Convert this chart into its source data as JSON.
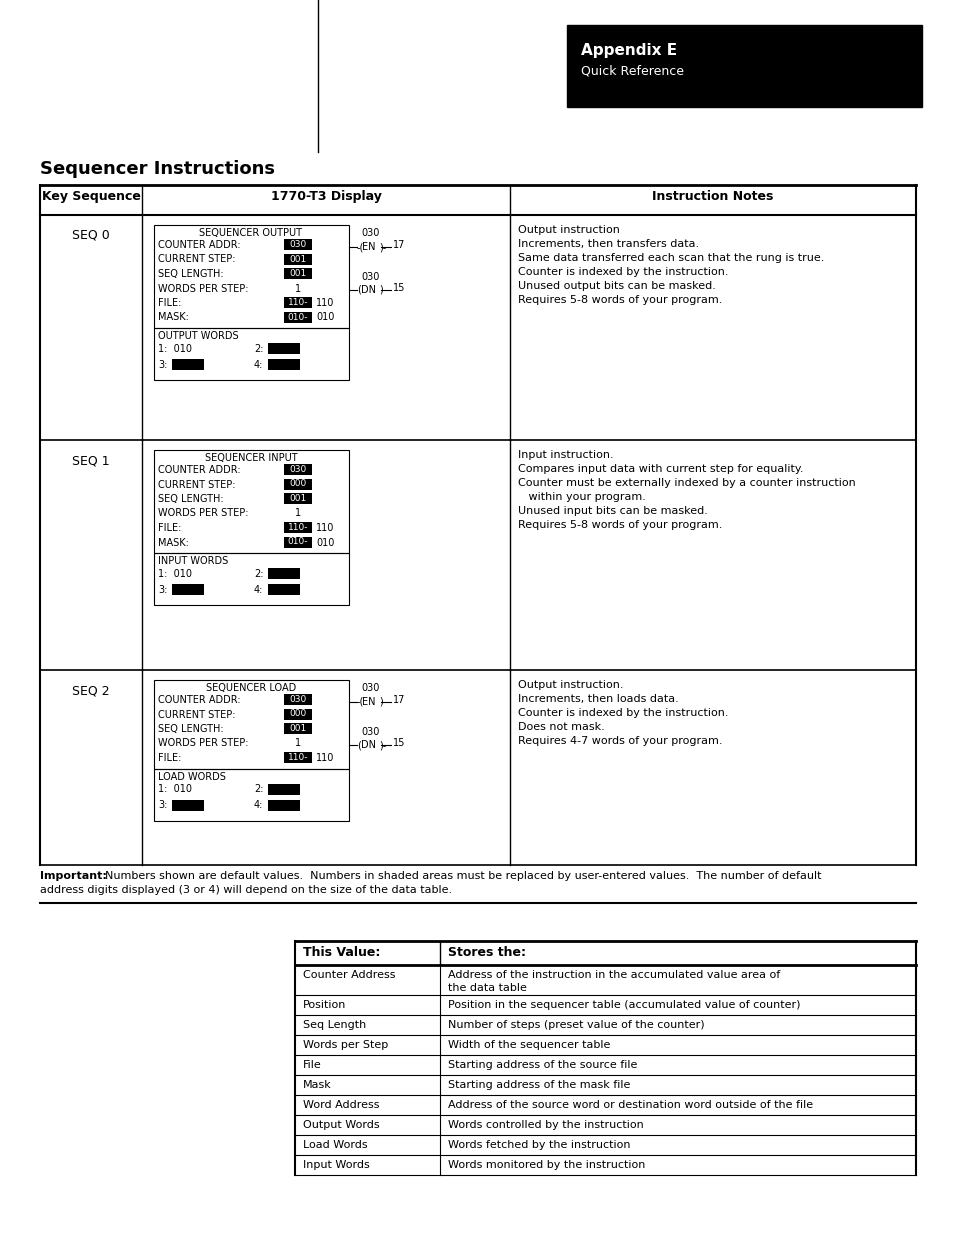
{
  "title": "Sequencer Instructions",
  "appendix_title": "Appendix E",
  "appendix_subtitle": "Quick Reference",
  "header_row": [
    "Key Sequence",
    "1770-T3 Display",
    "Instruction Notes"
  ],
  "seq_rows": [
    {
      "key": "SEQ 0",
      "display_title": "SEQUENCER OUTPUT",
      "fields": [
        [
          "COUNTER ADDR:",
          "030",
          true,
          null
        ],
        [
          "CURRENT STEP:",
          "001",
          true,
          null
        ],
        [
          "SEQ LENGTH:",
          "001",
          true,
          null
        ],
        [
          "WORDS PER STEP:",
          "1",
          false,
          null
        ],
        [
          "FILE:",
          "110-",
          true,
          "110"
        ],
        [
          "MASK:",
          "010-",
          true,
          "010"
        ]
      ],
      "words_label": "OUTPUT WORDS",
      "word1_text": "1:  010",
      "has_right": true,
      "right_top": "030",
      "right_mid_label": "EN",
      "right_mid_val": "17",
      "right_bot": "030",
      "right_bot_label": "DN",
      "right_bot_val": "15",
      "notes": [
        "Output instruction",
        "Increments, then transfers data.",
        "Same data transferred each scan that the rung is true.",
        "Counter is indexed by the instruction.",
        "Unused output bits can be masked.",
        "Requires 5-8 words of your program."
      ]
    },
    {
      "key": "SEQ 1",
      "display_title": "SEQUENCER INPUT",
      "fields": [
        [
          "COUNTER ADDR:",
          "030",
          true,
          null
        ],
        [
          "CURRENT STEP:",
          "000",
          true,
          null
        ],
        [
          "SEQ LENGTH:",
          "001",
          true,
          null
        ],
        [
          "WORDS PER STEP:",
          "1",
          false,
          null
        ],
        [
          "FILE:",
          "110-",
          true,
          "110"
        ],
        [
          "MASK:",
          "010-",
          true,
          "010"
        ]
      ],
      "words_label": "INPUT WORDS",
      "word1_text": "1:  010",
      "has_right": false,
      "right_top": null,
      "right_mid_label": null,
      "right_mid_val": null,
      "right_bot": null,
      "right_bot_label": null,
      "right_bot_val": null,
      "notes": [
        "Input instruction.",
        "Compares input data with current step for equality.",
        "Counter must be externally indexed by a counter instruction",
        "   within your program.",
        "Unused input bits can be masked.",
        "Requires 5-8 words of your program."
      ]
    },
    {
      "key": "SEQ 2",
      "display_title": "SEQUENCER LOAD",
      "fields": [
        [
          "COUNTER ADDR:",
          "030",
          true,
          null
        ],
        [
          "CURRENT STEP:",
          "000",
          true,
          null
        ],
        [
          "SEQ LENGTH:",
          "001",
          true,
          null
        ],
        [
          "WORDS PER STEP:",
          "1",
          false,
          null
        ],
        [
          "FILE:",
          "110-",
          true,
          "110"
        ]
      ],
      "words_label": "LOAD WORDS",
      "word1_text": "1:  010",
      "has_right": true,
      "right_top": "030",
      "right_mid_label": "EN",
      "right_mid_val": "17",
      "right_bot": "030",
      "right_bot_label": "DN",
      "right_bot_val": "15",
      "notes": [
        "Output instruction.",
        "Increments, then loads data.",
        "Counter is indexed by the instruction.",
        "Does not mask.",
        "Requires 4-7 words of your program."
      ]
    }
  ],
  "important_bold": "Important:",
  "important_rest": "  Numbers shown are default values.  Numbers in shaded areas must be replaced by user-entered values.  The number of default",
  "important_line2": "address digits displayed (3 or 4) will depend on the size of the data table.",
  "table2_header": [
    "This Value:",
    "Stores the:"
  ],
  "table2_rows": [
    [
      "Counter Address",
      "Address of the instruction in the accumulated value area of\nthe data table"
    ],
    [
      "Position",
      "Position in the sequencer table (accumulated value of counter)"
    ],
    [
      "Seq Length",
      "Number of steps (preset value of the counter)"
    ],
    [
      "Words per Step",
      "Width of the sequencer table"
    ],
    [
      "File",
      "Starting address of the source file"
    ],
    [
      "Mask",
      "Starting address of the mask file"
    ],
    [
      "Word Address",
      "Address of the source word or destination word outside of the file"
    ],
    [
      "Output Words",
      "Words controlled by the instruction"
    ],
    [
      "Load Words",
      "Words fetched by the instruction"
    ],
    [
      "Input Words",
      "Words monitored by the instruction"
    ]
  ]
}
